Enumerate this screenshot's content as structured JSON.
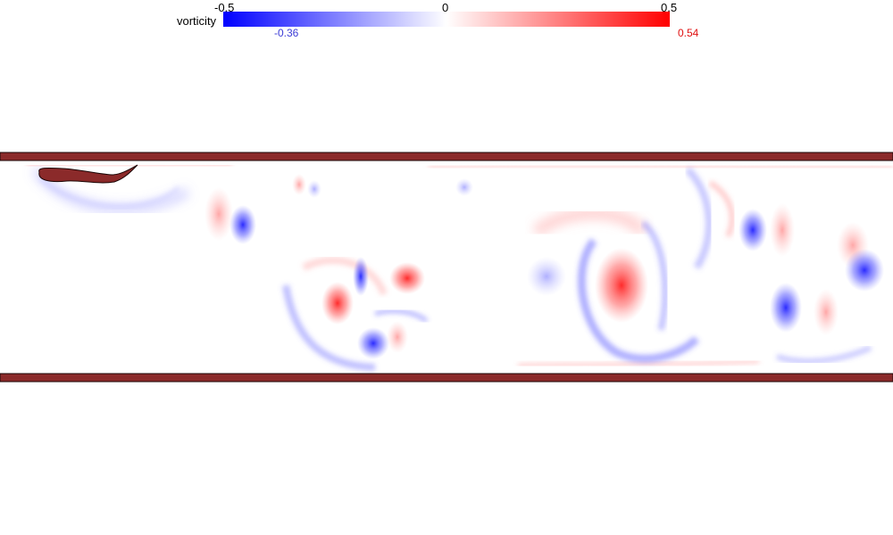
{
  "colorbar": {
    "title": "vorticity",
    "ticks": [
      "-0.5",
      "0",
      "0.5"
    ],
    "range": [
      -0.5,
      0.5
    ],
    "min_value": "-0.36",
    "max_value": "0.54",
    "negative_color": "#0000ff",
    "positive_color": "#ff0000",
    "min_label_color": "#3b3bd6",
    "max_label_color": "#e01010"
  },
  "walls": {
    "color": "#8b2a2a",
    "edge_color": "#1a0505"
  },
  "swimmer": {
    "color": "#8b2a2a"
  }
}
